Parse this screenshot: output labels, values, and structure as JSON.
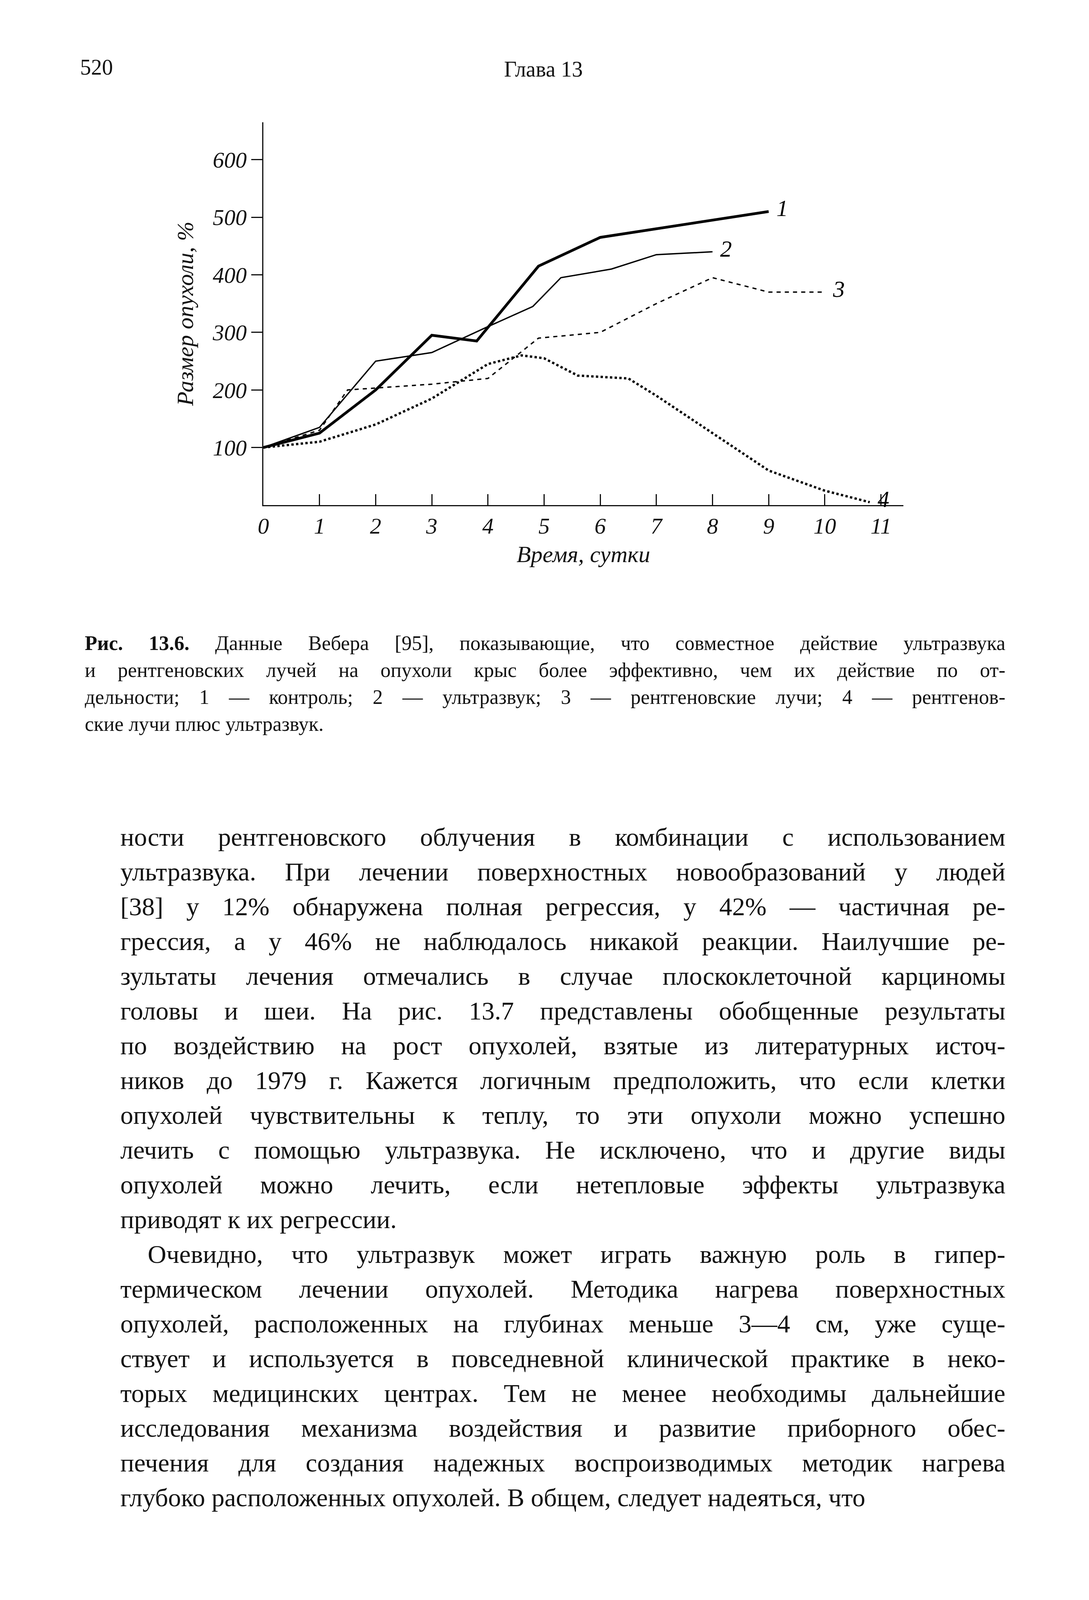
{
  "header": {
    "page": "520",
    "chapter": "Глава 13"
  },
  "chart_data": {
    "type": "line",
    "x_label": "Время, сутки",
    "y_label": "Размер опухоли, %",
    "xlim": [
      0,
      11.4
    ],
    "xticks": [
      0,
      1,
      2,
      3,
      4,
      5,
      6,
      7,
      8,
      9,
      10,
      11
    ],
    "ylim": [
      0,
      665
    ],
    "yticks": [
      100,
      200,
      300,
      400,
      500,
      600
    ],
    "grid": false,
    "series": [
      {
        "name": "1",
        "color": "#000000",
        "line_style": "solid",
        "x": [
          0,
          1,
          2,
          3,
          3.8,
          4.9,
          6,
          7,
          8,
          9
        ],
        "values": [
          100,
          125,
          200,
          295,
          285,
          415,
          465,
          480,
          495,
          510
        ]
      },
      {
        "name": "2",
        "color": "#000000",
        "line_style": "solid",
        "x": [
          0,
          1,
          2,
          3,
          4,
          4.8,
          5.3,
          6.2,
          7,
          8
        ],
        "values": [
          100,
          135,
          250,
          265,
          310,
          345,
          395,
          410,
          435,
          440
        ]
      },
      {
        "name": "3",
        "color": "#000000",
        "line_style": "dash",
        "x": [
          0,
          1,
          1.5,
          3,
          4,
          4.9,
          6,
          7,
          8,
          9,
          10
        ],
        "values": [
          100,
          130,
          200,
          210,
          220,
          290,
          300,
          350,
          395,
          370,
          370
        ]
      },
      {
        "name": "4",
        "color": "#000000",
        "line_style": "dot",
        "x": [
          0,
          1,
          2,
          3,
          4,
          4.6,
          5,
          5.6,
          6.5,
          7,
          8,
          9,
          10,
          10.8
        ],
        "values": [
          100,
          110,
          140,
          185,
          245,
          260,
          255,
          225,
          220,
          190,
          125,
          60,
          25,
          5
        ]
      }
    ]
  },
  "caption": {
    "label": "Рис. 13.6.",
    "lines": [
      "Данные Вебера [95], показывающие, что совместное действие ультразвука",
      "и рентгеновских лучей на опухоли крыс более эффективно, чем их действие по от-",
      "дельности; 1 — контроль; 2 — ультразвук; 3 — рентгеновские лучи; 4 — рентгенов-",
      "ские лучи плюс ультразвук."
    ]
  },
  "body": {
    "paragraphs": [
      [
        "ности рентгеновского облучения в комбинации с использованием",
        "ультразвука. При лечении поверхностных новообразований у людей",
        "[38] у 12% обнаружена полная регрессия, у 42% — частичная ре-",
        "грессия, а у 46% не наблюдалось никакой реакции. Наилучшие ре-",
        "зультаты лечения отмечались в случае плоскоклеточной карциномы",
        "головы и шеи. На рис. 13.7 представлены обобщенные результаты",
        "по воздействию на рост опухолей, взятые из литературных источ-",
        "ников до 1979 г. Кажется логичным предположить, что если клетки",
        "опухолей чувствительны к теплу, то эти опухоли можно успешно",
        "лечить с помощью ультразвука. Не исключено, что и другие виды",
        "опухолей можно лечить, если нетепловые эффекты ультразвука",
        "приводят к их регрессии."
      ],
      [
        "Очевидно, что ультразвук может играть важную роль в гипер-",
        "термическом лечении опухолей. Методика нагрева поверхностных",
        "опухолей, расположенных на глубинах меньше 3—4 см, уже суще-",
        "ствует и используется в повседневной клинической практике в неко-",
        "торых медицинских центрах. Тем не менее необходимы дальнейшие",
        "исследования механизма воздействия и развитие приборного обес-",
        "печения для создания надежных воспроизводимых методик нагрева",
        "глубоко расположенных опухолей. В общем, следует надеяться, что"
      ]
    ]
  }
}
